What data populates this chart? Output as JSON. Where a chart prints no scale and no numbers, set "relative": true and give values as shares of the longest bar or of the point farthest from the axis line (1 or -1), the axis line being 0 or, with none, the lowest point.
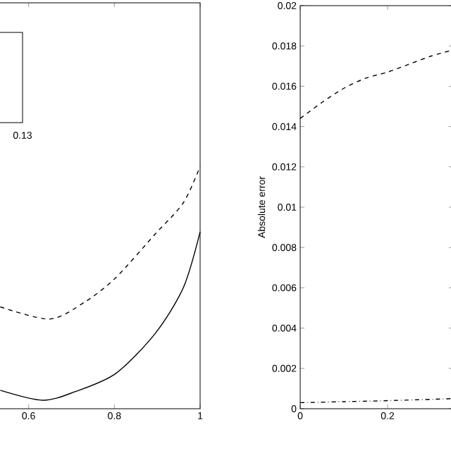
{
  "chart_data": [
    {
      "type": "line",
      "relative": true,
      "xlim": [
        0.53,
        1
      ],
      "xticks": [
        0.6,
        0.8,
        1
      ],
      "tick_labels": "x",
      "annotations": [
        "0.13"
      ],
      "series": [
        {
          "line_style": "dashed",
          "color": "#000000",
          "x": [
            0.534,
            0.649,
            0.731,
            0.803,
            0.895,
            0.961,
            1
          ],
          "values": [
            0.42,
            0.37,
            0.44,
            0.54,
            0.72,
            0.85,
            1.0
          ]
        },
        {
          "line_style": "solid",
          "color": "#000000",
          "x": [
            0.534,
            0.633,
            0.708,
            0.803,
            0.895,
            0.961,
            1
          ],
          "values": [
            0.076,
            0.035,
            0.07,
            0.145,
            0.31,
            0.5,
            0.73
          ]
        }
      ]
    },
    {
      "type": "line",
      "ylabel": "Absolute error",
      "xlim": [
        0,
        0.35
      ],
      "xticks": [
        0,
        0.2
      ],
      "ylim": [
        0,
        0.02
      ],
      "yticks": [
        0,
        0.002,
        0.004,
        0.006,
        0.008,
        0.01,
        0.012,
        0.014,
        0.016,
        0.018,
        0.02
      ],
      "series": [
        {
          "line_style": "dashed",
          "color": "#000000",
          "x": [
            0,
            0.05,
            0.1,
            0.15,
            0.2,
            0.25,
            0.3,
            0.35
          ],
          "values": [
            0.0144,
            0.0152,
            0.0159,
            0.0164,
            0.0167,
            0.0171,
            0.0175,
            0.0178
          ]
        },
        {
          "line_style": "dashdot",
          "color": "#000000",
          "x": [
            0,
            0.1,
            0.2,
            0.35
          ],
          "values": [
            0.0003,
            0.00035,
            0.0004,
            0.0005
          ]
        }
      ]
    }
  ]
}
